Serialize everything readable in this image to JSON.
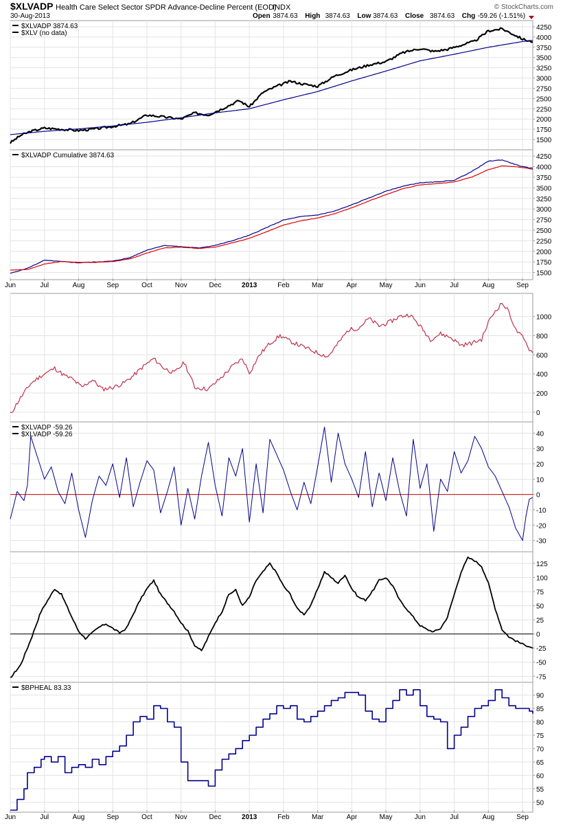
{
  "header": {
    "symbol": "$XLVADP",
    "description": "Health Care Select Sector SPDR Advance-Decline Percent (EOD)",
    "exchange": "INDX",
    "date": "30-Aug-2013",
    "watermark": "© StockCharts.com",
    "ohlc": [
      {
        "label": "Open",
        "value": "3874.63"
      },
      {
        "label": "High",
        "value": "3874.63"
      },
      {
        "label": "Low",
        "value": "3874.63"
      },
      {
        "label": "Close",
        "value": "3874.63"
      },
      {
        "label": "Chg",
        "value": "-59.26 (-1.51%)"
      }
    ]
  },
  "x_axis": {
    "labels": [
      {
        "text": "Jun",
        "month": 0
      },
      {
        "text": "Jul",
        "month": 1
      },
      {
        "text": "Aug",
        "month": 2
      },
      {
        "text": "Sep",
        "month": 3
      },
      {
        "text": "Oct",
        "month": 4
      },
      {
        "text": "Nov",
        "month": 5
      },
      {
        "text": "Dec",
        "month": 6
      },
      {
        "text": "2013",
        "month": 7,
        "bold": true
      },
      {
        "text": "Feb",
        "month": 8
      },
      {
        "text": "Mar",
        "month": 9
      },
      {
        "text": "Apr",
        "month": 10
      },
      {
        "text": "May",
        "month": 11
      },
      {
        "text": "Jun",
        "month": 12
      },
      {
        "text": "Jul",
        "month": 13
      },
      {
        "text": "Aug",
        "month": 14
      },
      {
        "text": "Sep",
        "month": 15
      }
    ]
  },
  "chart_data": [
    {
      "type": "line",
      "legend": [
        {
          "text": "$XLVADP  3874.63",
          "color": "#000000"
        },
        {
          "text": "$XLV (no data)",
          "color": "#000000"
        }
      ],
      "ylim": [
        1300,
        4350
      ],
      "y_ticks": [
        1500,
        1750,
        2000,
        2250,
        2500,
        2750,
        3000,
        3250,
        3500,
        3750,
        4000,
        4250
      ],
      "series": [
        {
          "name": "$XLVADP",
          "color": "#000000",
          "width": 2.2,
          "noise": 55,
          "seed": 3,
          "x": [
            0,
            0.3,
            0.6,
            1.0,
            1.5,
            2.0,
            2.5,
            3.0,
            3.5,
            4.0,
            4.5,
            5.0,
            5.4,
            5.8,
            6.2,
            6.7,
            7.0,
            7.4,
            7.8,
            8.2,
            8.6,
            9.0,
            9.5,
            10.0,
            10.5,
            11.0,
            11.5,
            12.0,
            12.4,
            12.8,
            13.2,
            13.6,
            14.0,
            14.4,
            14.7,
            15.0,
            15.3
          ],
          "y": [
            1420,
            1600,
            1700,
            1780,
            1750,
            1720,
            1760,
            1820,
            1880,
            2100,
            2050,
            2000,
            2150,
            2100,
            2250,
            2450,
            2300,
            2650,
            2800,
            2920,
            2850,
            2800,
            3050,
            3200,
            3320,
            3400,
            3620,
            3720,
            3650,
            3700,
            3800,
            3900,
            4150,
            4200,
            4080,
            3950,
            3880
          ]
        },
        {
          "name": "",
          "color": "#00008b",
          "width": 1.2,
          "noise": 0,
          "seed": 1,
          "x": [
            0,
            1,
            2,
            3,
            4,
            5,
            6,
            7,
            8,
            9,
            10,
            11,
            12,
            13,
            14,
            15,
            15.3
          ],
          "y": [
            1620,
            1700,
            1760,
            1830,
            1920,
            2030,
            2150,
            2250,
            2470,
            2670,
            2930,
            3170,
            3420,
            3580,
            3750,
            3890,
            3920
          ]
        }
      ]
    },
    {
      "type": "line",
      "legend": [
        {
          "text": "$XLVADP  Cumulative  3874.63",
          "color": "#000000"
        }
      ],
      "ylim": [
        1380,
        4350
      ],
      "y_ticks": [
        1500,
        1750,
        2000,
        2250,
        2500,
        2750,
        3000,
        3250,
        3500,
        3750,
        4000,
        4250
      ],
      "series": [
        {
          "name": "",
          "color": "#00008b",
          "width": 1.2,
          "noise": 12,
          "seed": 5,
          "x": [
            0,
            0.5,
            1.0,
            1.5,
            2.0,
            2.5,
            3.0,
            3.5,
            4.0,
            4.5,
            5.0,
            5.5,
            6.0,
            6.5,
            7.0,
            7.5,
            8.0,
            8.5,
            9.0,
            9.5,
            10.0,
            10.5,
            11.0,
            11.5,
            12.0,
            12.5,
            13.0,
            13.5,
            14.0,
            14.4,
            14.8,
            15.0,
            15.3
          ],
          "y": [
            1480,
            1600,
            1790,
            1760,
            1730,
            1750,
            1770,
            1850,
            2030,
            2140,
            2110,
            2080,
            2140,
            2250,
            2380,
            2560,
            2740,
            2820,
            2860,
            2950,
            3100,
            3260,
            3420,
            3540,
            3620,
            3640,
            3680,
            3880,
            4130,
            4160,
            4050,
            4000,
            3960
          ]
        },
        {
          "name": "",
          "color": "#e00000",
          "width": 1.2,
          "noise": 8,
          "seed": 7,
          "x": [
            0,
            0.5,
            1.0,
            1.5,
            2.0,
            2.5,
            3.0,
            3.5,
            4.0,
            4.5,
            5.0,
            5.5,
            6.0,
            6.5,
            7.0,
            7.5,
            8.0,
            8.5,
            9.0,
            9.5,
            10.0,
            10.5,
            11.0,
            11.5,
            12.0,
            12.5,
            13.0,
            13.5,
            14.0,
            14.4,
            14.8,
            15.0,
            15.3
          ],
          "y": [
            1560,
            1570,
            1700,
            1760,
            1740,
            1740,
            1760,
            1820,
            1960,
            2080,
            2100,
            2070,
            2100,
            2200,
            2310,
            2460,
            2620,
            2720,
            2790,
            2890,
            3030,
            3190,
            3340,
            3480,
            3570,
            3600,
            3640,
            3750,
            3930,
            4020,
            4000,
            3980,
            3940
          ]
        }
      ]
    },
    {
      "type": "line",
      "legend": [],
      "ylim": [
        -80,
        1220
      ],
      "y_ticks": [
        0,
        200,
        400,
        600,
        800,
        1000
      ],
      "series": [
        {
          "name": "",
          "color": "#c0304a",
          "width": 1.2,
          "noise": 45,
          "seed": 11,
          "x": [
            0,
            0.3,
            0.6,
            0.9,
            1.1,
            1.3,
            1.6,
            1.8,
            2.1,
            2.4,
            2.7,
            3.0,
            3.3,
            3.6,
            3.9,
            4.2,
            4.5,
            4.8,
            5.1,
            5.4,
            5.8,
            6.2,
            6.5,
            6.8,
            7.0,
            7.3,
            7.6,
            7.9,
            8.2,
            8.6,
            9.0,
            9.3,
            9.6,
            9.9,
            10.2,
            10.5,
            10.8,
            11.1,
            11.4,
            11.7,
            12.0,
            12.3,
            12.6,
            12.9,
            13.2,
            13.5,
            13.8,
            14.0,
            14.2,
            14.4,
            14.6,
            14.8,
            15.0,
            15.2,
            15.3
          ],
          "y": [
            -20,
            150,
            300,
            380,
            420,
            460,
            380,
            350,
            260,
            340,
            240,
            260,
            300,
            380,
            480,
            560,
            460,
            410,
            520,
            260,
            240,
            370,
            480,
            560,
            410,
            600,
            720,
            800,
            740,
            680,
            620,
            580,
            720,
            860,
            880,
            980,
            900,
            940,
            1000,
            1020,
            900,
            760,
            820,
            780,
            700,
            720,
            760,
            940,
            1060,
            1140,
            1050,
            860,
            780,
            660,
            620
          ]
        }
      ]
    },
    {
      "type": "line",
      "legend": [
        {
          "text": "$XLVADP  -59.26",
          "color": "#000000"
        },
        {
          "text": "$XLVADP  -59.26",
          "color": "#000000"
        }
      ],
      "ylim": [
        -36,
        46
      ],
      "y_ticks": [
        -30,
        -20,
        -10,
        0,
        10,
        20,
        30,
        40
      ],
      "ref_line": {
        "value": 0,
        "color": "#cc0000"
      },
      "series": [
        {
          "name": "",
          "color": "#00008b",
          "width": 1.0,
          "noise": 0,
          "seed": 13,
          "x": [
            0,
            0.2,
            0.4,
            0.5,
            0.6,
            0.8,
            1.0,
            1.2,
            1.4,
            1.6,
            1.8,
            2.0,
            2.2,
            2.4,
            2.6,
            2.8,
            3.0,
            3.2,
            3.4,
            3.6,
            3.8,
            4.0,
            4.2,
            4.4,
            4.6,
            4.8,
            5.0,
            5.2,
            5.4,
            5.6,
            5.8,
            6.0,
            6.2,
            6.4,
            6.6,
            6.8,
            7.0,
            7.2,
            7.4,
            7.6,
            7.8,
            8.0,
            8.2,
            8.4,
            8.6,
            8.8,
            9.0,
            9.2,
            9.4,
            9.6,
            9.8,
            10.0,
            10.2,
            10.4,
            10.6,
            10.8,
            11.0,
            11.2,
            11.4,
            11.6,
            11.8,
            12.0,
            12.2,
            12.4,
            12.6,
            12.8,
            13.0,
            13.2,
            13.4,
            13.6,
            13.8,
            14.0,
            14.2,
            14.4,
            14.6,
            14.8,
            15.0,
            15.1,
            15.2,
            15.3
          ],
          "y": [
            -16,
            2,
            -4,
            6,
            38,
            24,
            10,
            18,
            2,
            -6,
            14,
            -10,
            -28,
            -4,
            12,
            6,
            20,
            -2,
            24,
            -8,
            8,
            22,
            16,
            -12,
            2,
            18,
            -20,
            4,
            -16,
            12,
            34,
            6,
            -14,
            24,
            12,
            30,
            -18,
            20,
            -12,
            36,
            26,
            16,
            2,
            -10,
            8,
            -6,
            18,
            44,
            8,
            40,
            20,
            10,
            -2,
            28,
            -8,
            14,
            -4,
            24,
            2,
            -14,
            36,
            4,
            20,
            -24,
            10,
            2,
            28,
            14,
            22,
            38,
            30,
            18,
            12,
            2,
            -8,
            -22,
            -30,
            -14,
            -3,
            -2
          ]
        }
      ]
    },
    {
      "type": "line",
      "legend": [],
      "ylim": [
        -82,
        142
      ],
      "y_ticks": [
        -75,
        -50,
        -25,
        0,
        25,
        50,
        75,
        100,
        125
      ],
      "ref_line": {
        "value": 0,
        "color": "#000000"
      },
      "series": [
        {
          "name": "",
          "color": "#000000",
          "width": 1.8,
          "noise": 3,
          "seed": 17,
          "x": [
            0,
            0.3,
            0.6,
            0.9,
            1.1,
            1.3,
            1.5,
            1.8,
            2.0,
            2.2,
            2.4,
            2.6,
            2.8,
            3.0,
            3.2,
            3.4,
            3.6,
            3.8,
            4.0,
            4.2,
            4.4,
            4.6,
            4.8,
            5.0,
            5.2,
            5.4,
            5.6,
            5.8,
            6.0,
            6.2,
            6.4,
            6.6,
            6.8,
            7.0,
            7.2,
            7.4,
            7.6,
            7.8,
            8.0,
            8.2,
            8.4,
            8.6,
            8.8,
            9.0,
            9.2,
            9.4,
            9.6,
            9.8,
            10.0,
            10.2,
            10.4,
            10.6,
            10.8,
            11.0,
            11.2,
            11.4,
            11.6,
            11.8,
            12.0,
            12.2,
            12.4,
            12.6,
            12.8,
            13.0,
            13.2,
            13.4,
            13.6,
            13.8,
            14.0,
            14.2,
            14.4,
            14.6,
            14.8,
            15.0,
            15.2,
            15.3
          ],
          "y": [
            -78,
            -55,
            -10,
            40,
            60,
            80,
            70,
            30,
            5,
            -8,
            2,
            12,
            18,
            10,
            2,
            10,
            35,
            60,
            80,
            95,
            70,
            55,
            40,
            20,
            5,
            -20,
            -30,
            -5,
            20,
            40,
            70,
            78,
            50,
            65,
            95,
            110,
            125,
            108,
            85,
            70,
            45,
            35,
            50,
            80,
            110,
            100,
            90,
            105,
            80,
            65,
            60,
            75,
            95,
            100,
            85,
            60,
            45,
            30,
            15,
            8,
            4,
            10,
            30,
            70,
            110,
            135,
            130,
            120,
            90,
            45,
            8,
            -5,
            -12,
            -18,
            -22,
            -25
          ]
        }
      ]
    },
    {
      "type": "line",
      "legend": [
        {
          "text": "$BPHEAL  83.33",
          "color": "#000000"
        }
      ],
      "ylim": [
        47,
        94
      ],
      "y_ticks": [
        50,
        55,
        60,
        65,
        70,
        75,
        80,
        85,
        90
      ],
      "step": true,
      "series": [
        {
          "name": "$BPHEAL",
          "color": "#00008b",
          "width": 1.6,
          "noise": 0,
          "seed": 19,
          "x": [
            0,
            0.2,
            0.4,
            0.5,
            0.7,
            0.9,
            1.0,
            1.2,
            1.4,
            1.6,
            1.8,
            2.0,
            2.2,
            2.4,
            2.6,
            2.8,
            3.0,
            3.2,
            3.4,
            3.6,
            3.8,
            4.0,
            4.2,
            4.4,
            4.6,
            4.8,
            5.0,
            5.2,
            5.4,
            5.6,
            5.8,
            6.0,
            6.2,
            6.4,
            6.6,
            6.8,
            7.0,
            7.2,
            7.4,
            7.6,
            7.8,
            8.0,
            8.2,
            8.4,
            8.6,
            8.8,
            9.0,
            9.2,
            9.4,
            9.6,
            9.8,
            10.0,
            10.2,
            10.4,
            10.6,
            10.8,
            11.0,
            11.2,
            11.4,
            11.6,
            11.8,
            12.0,
            12.2,
            12.4,
            12.6,
            12.8,
            13.0,
            13.2,
            13.4,
            13.6,
            13.8,
            14.0,
            14.2,
            14.4,
            14.6,
            14.8,
            15.0,
            15.2,
            15.3
          ],
          "y": [
            47,
            51,
            55,
            61,
            63,
            66,
            67,
            65,
            67,
            61,
            63,
            64,
            63,
            66,
            64,
            67,
            69,
            71,
            75,
            80,
            82,
            81,
            86,
            85,
            80,
            78,
            65,
            58,
            58,
            58,
            56,
            62,
            66,
            68,
            70,
            73,
            75,
            78,
            81,
            83,
            86,
            85,
            86,
            81,
            80,
            82,
            84,
            86,
            88,
            89,
            91,
            91,
            90,
            84,
            81,
            80,
            85,
            88,
            92,
            90,
            92,
            86,
            82,
            81,
            80,
            70,
            75,
            78,
            82,
            85,
            86,
            88,
            92,
            89,
            86,
            85,
            85,
            84,
            83
          ]
        }
      ]
    }
  ]
}
